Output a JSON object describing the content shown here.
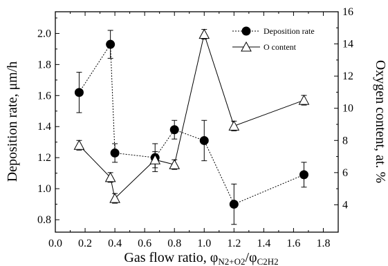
{
  "chart_data": {
    "type": "line",
    "xlabel": {
      "main": "Gas flow ratio, φ",
      "sub1": "N2+O2",
      "mid": "/φ",
      "sub2": "C2H2"
    },
    "ylabel_left": "Deposition rate, μm/h",
    "ylabel_right": "Oxygen content, at. %",
    "xlim": [
      0.0,
      1.9
    ],
    "ylim_left": [
      0.72,
      2.14
    ],
    "ylim_right": [
      2.3,
      16.0
    ],
    "xticks": [
      "0.0",
      "0.2",
      "0.4",
      "0.6",
      "0.8",
      "1.0",
      "1.2",
      "1.4",
      "1.6",
      "1.8"
    ],
    "xtick_values": [
      0.0,
      0.2,
      0.4,
      0.6,
      0.8,
      1.0,
      1.2,
      1.4,
      1.6,
      1.8
    ],
    "yticks_left": [
      "0.8",
      "1.0",
      "1.2",
      "1.4",
      "1.6",
      "1.8",
      "2.0"
    ],
    "ytick_values_left": [
      0.8,
      1.0,
      1.2,
      1.4,
      1.6,
      1.8,
      2.0
    ],
    "yticks_right": [
      "4",
      "6",
      "8",
      "10",
      "12",
      "14",
      "16"
    ],
    "ytick_values_right": [
      4,
      6,
      8,
      10,
      12,
      14,
      16
    ],
    "legend_position": "top-right",
    "series": [
      {
        "name": "Deposition rate",
        "axis": "left",
        "marker": "filled-circle",
        "line": "dotted",
        "x": [
          0.16,
          0.37,
          0.4,
          0.67,
          0.8,
          1.0,
          1.2,
          1.67
        ],
        "y": [
          1.62,
          1.93,
          1.23,
          1.2,
          1.38,
          1.31,
          0.9,
          1.09
        ],
        "err": [
          0.13,
          0.09,
          0.06,
          0.09,
          0.06,
          0.13,
          0.13,
          0.08
        ]
      },
      {
        "name": "O content",
        "axis": "right",
        "marker": "open-triangle",
        "line": "solid",
        "x": [
          0.16,
          0.37,
          0.4,
          0.67,
          0.8,
          1.0,
          1.2,
          1.67
        ],
        "y": [
          7.7,
          5.7,
          4.4,
          6.8,
          6.5,
          14.6,
          8.9,
          10.5
        ],
        "err": [
          0.3,
          0.3,
          0.3,
          0.5,
          0.3,
          0.3,
          0.3,
          0.3
        ]
      }
    ]
  }
}
